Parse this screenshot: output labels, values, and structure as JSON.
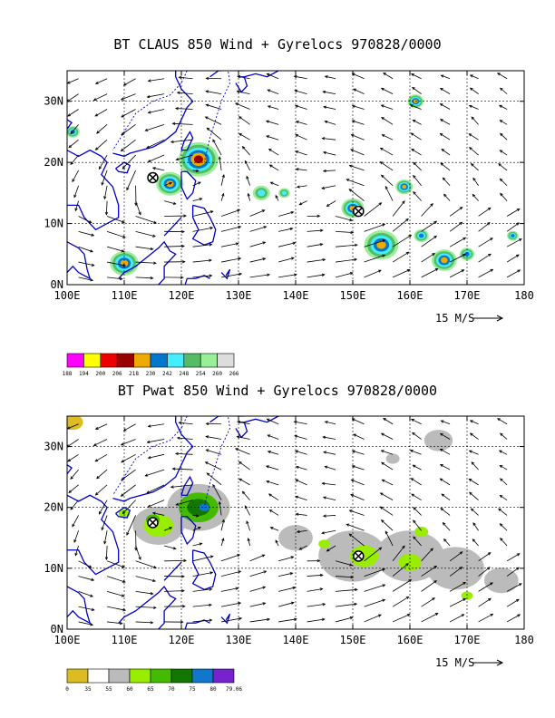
{
  "chart_data": [
    {
      "type": "heatmap",
      "title": "BT CLAUS 850 Wind + Gyrelocs 970828/0000",
      "x_ticks": [
        "100E",
        "110E",
        "120E",
        "130E",
        "140E",
        "150E",
        "160E",
        "170E",
        "180"
      ],
      "y_ticks": [
        "0N",
        "10N",
        "20N",
        "30N"
      ],
      "xlim": [
        100,
        180
      ],
      "ylim": [
        0,
        35
      ],
      "grid": true,
      "wind_reference_label": "15 M/S",
      "legend": {
        "values": [
          "188",
          "194",
          "200",
          "206",
          "218",
          "230",
          "242",
          "248",
          "254",
          "260",
          "266"
        ],
        "colors": [
          "#ff00ff",
          "#ffff00",
          "#ee0000",
          "#990000",
          "#eeaa00",
          "#0077cc",
          "#44eeff",
          "#55bb66",
          "#99ee99",
          "#dddddd"
        ]
      },
      "gyre_locations": [
        {
          "lon": 115,
          "lat": 17.5
        },
        {
          "lon": 151,
          "lat": 12
        }
      ],
      "features": [
        {
          "lon": 123,
          "lat": 20.5,
          "r": 3.5,
          "level": 3
        },
        {
          "lon": 118,
          "lat": 16.5,
          "r": 2.4,
          "level": 2
        },
        {
          "lon": 110,
          "lat": 3.5,
          "r": 2.5,
          "level": 2
        },
        {
          "lon": 101,
          "lat": 25,
          "r": 1.2,
          "level": 1
        },
        {
          "lon": 150,
          "lat": 12.5,
          "r": 2.0,
          "level": 2
        },
        {
          "lon": 155,
          "lat": 6.5,
          "r": 3.0,
          "level": 2
        },
        {
          "lon": 159,
          "lat": 16,
          "r": 1.5,
          "level": 2
        },
        {
          "lon": 161,
          "lat": 30,
          "r": 1.4,
          "level": 2
        },
        {
          "lon": 166,
          "lat": 4,
          "r": 2.2,
          "level": 2
        },
        {
          "lon": 162,
          "lat": 8,
          "r": 1.3,
          "level": 1
        },
        {
          "lon": 138,
          "lat": 15,
          "r": 1.0,
          "level": 0
        },
        {
          "lon": 134,
          "lat": 15,
          "r": 1.5,
          "level": 0
        },
        {
          "lon": 178,
          "lat": 8,
          "r": 1.0,
          "level": 1
        },
        {
          "lon": 170,
          "lat": 5,
          "r": 1.3,
          "level": 1
        }
      ]
    },
    {
      "type": "heatmap",
      "title": "BT Pwat 850 Wind + Gyrelocs 970828/0000",
      "x_ticks": [
        "100E",
        "110E",
        "120E",
        "130E",
        "140E",
        "150E",
        "160E",
        "170E",
        "180"
      ],
      "y_ticks": [
        "0N",
        "10N",
        "20N",
        "30N"
      ],
      "xlim": [
        100,
        180
      ],
      "ylim": [
        0,
        35
      ],
      "grid": true,
      "wind_reference_label": "15 M/S",
      "legend": {
        "values": [
          "0",
          "35",
          "55",
          "60",
          "65",
          "70",
          "75",
          "80",
          "79.06"
        ],
        "colors": [
          "#ddbb22",
          "#ffffff",
          "#bbbbbb",
          "#99ee00",
          "#44bb00",
          "#117700",
          "#1177cc",
          "#7722cc"
        ]
      },
      "gyre_locations": [
        {
          "lon": 115,
          "lat": 17.5
        },
        {
          "lon": 151,
          "lat": 12
        }
      ],
      "features": [
        {
          "lon": 123,
          "lat": 20,
          "r": 5.5,
          "level": 2
        },
        {
          "lon": 123,
          "lat": 20,
          "r": 3.5,
          "level": 4
        },
        {
          "lon": 123,
          "lat": 20,
          "r": 2.0,
          "level": 5
        },
        {
          "lon": 124,
          "lat": 20,
          "r": 0.9,
          "level": 6
        },
        {
          "lon": 116,
          "lat": 17,
          "r": 4.5,
          "level": 2
        },
        {
          "lon": 116,
          "lat": 17,
          "r": 2.6,
          "level": 3
        },
        {
          "lon": 115,
          "lat": 18,
          "r": 1.2,
          "level": 4
        },
        {
          "lon": 150,
          "lat": 12,
          "r": 6,
          "level": 2
        },
        {
          "lon": 160,
          "lat": 12,
          "r": 6,
          "level": 2
        },
        {
          "lon": 168,
          "lat": 10,
          "r": 5,
          "level": 2
        },
        {
          "lon": 176,
          "lat": 8,
          "r": 3,
          "level": 2
        },
        {
          "lon": 140,
          "lat": 15,
          "r": 3,
          "level": 2
        },
        {
          "lon": 152,
          "lat": 12,
          "r": 2.5,
          "level": 3
        },
        {
          "lon": 160,
          "lat": 11,
          "r": 2.0,
          "level": 3
        },
        {
          "lon": 145,
          "lat": 14,
          "r": 1.0,
          "level": 3
        },
        {
          "lon": 162,
          "lat": 16,
          "r": 1.2,
          "level": 3
        },
        {
          "lon": 170,
          "lat": 5.5,
          "r": 1.0,
          "level": 3
        },
        {
          "lon": 110,
          "lat": 19,
          "r": 1.0,
          "level": 3
        },
        {
          "lon": 165,
          "lat": 31,
          "r": 2.5,
          "level": 2
        },
        {
          "lon": 157,
          "lat": 28,
          "r": 1.2,
          "level": 2
        },
        {
          "lon": 101,
          "lat": 34,
          "r": 1.8,
          "level": 0
        }
      ]
    }
  ]
}
